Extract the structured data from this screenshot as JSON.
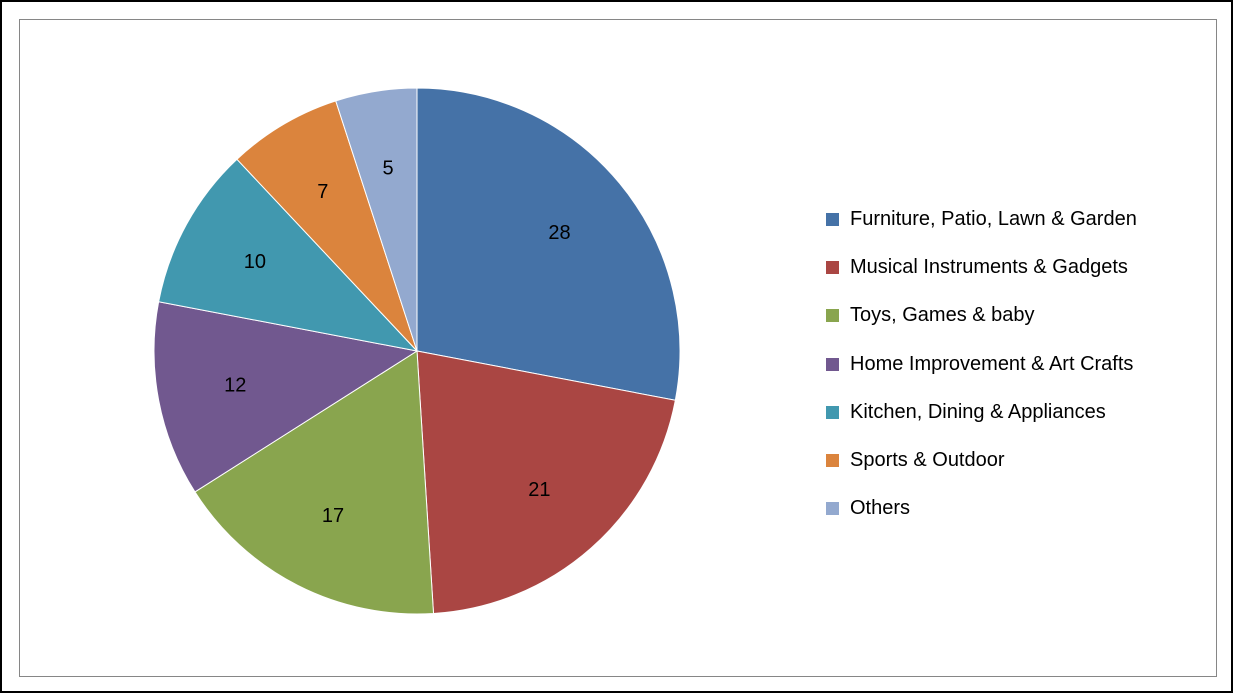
{
  "chart_data": {
    "type": "pie",
    "title": "",
    "categories": [
      "Furniture, Patio, Lawn & Garden",
      "Musical Instruments & Gadgets",
      "Toys, Games & baby",
      "Home Improvement & Art Crafts",
      "Kitchen, Dining & Appliances",
      "Sports & Outdoor",
      "Others"
    ],
    "values": [
      28,
      21,
      17,
      12,
      10,
      7,
      5
    ],
    "colors": [
      "#4572A7",
      "#AA4643",
      "#89A54E",
      "#71588F",
      "#4198AF",
      "#DB843D",
      "#93A9CF"
    ],
    "data_labels": [
      "28",
      "21",
      "17",
      "12",
      "10",
      "7",
      "5"
    ],
    "legend_position": "right",
    "start_angle": "12 o'clock, clockwise"
  }
}
